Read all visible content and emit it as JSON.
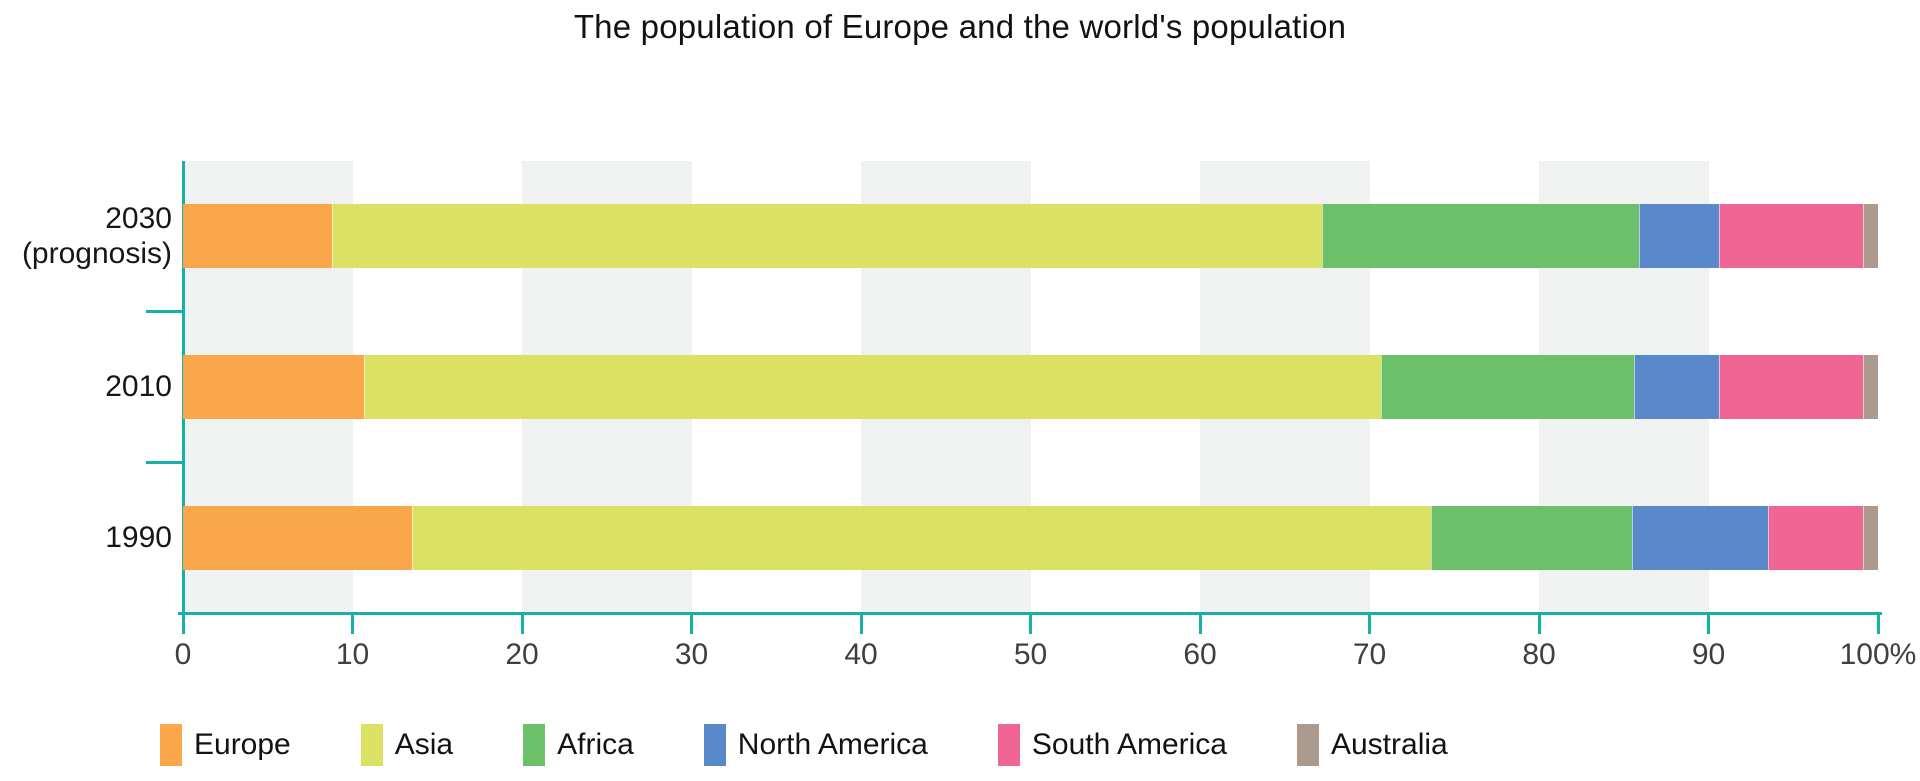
{
  "title": "The population of Europe and the world's population",
  "chart_data": {
    "type": "bar",
    "orientation": "horizontal",
    "stacked": true,
    "unit": "percent of world population",
    "title": "The population of Europe and the world's population",
    "categories": [
      "2030\n(prognosis)",
      "2010",
      "1990"
    ],
    "series": [
      {
        "name": "Europe",
        "color": "#FAA74B",
        "values": [
          8.8,
          10.7,
          13.5
        ]
      },
      {
        "name": "Asia",
        "color": "#DBE263",
        "values": [
          58.4,
          60.0,
          60.1
        ]
      },
      {
        "name": "Africa",
        "color": "#6BC069",
        "values": [
          18.7,
          14.9,
          11.9
        ]
      },
      {
        "name": "North America",
        "color": "#5989CA",
        "values": [
          4.7,
          5.0,
          8.0
        ]
      },
      {
        "name": "South America",
        "color": "#EF6593",
        "values": [
          8.5,
          8.5,
          5.6
        ]
      },
      {
        "name": "Australia",
        "color": "#AC9A8E",
        "values": [
          0.9,
          0.9,
          0.9
        ]
      }
    ],
    "xlim": [
      0,
      100
    ],
    "x_ticks": [
      "0",
      "10",
      "20",
      "30",
      "40",
      "50",
      "60",
      "70",
      "80",
      "90",
      "100%"
    ],
    "grid": "alternating gray/white vertical bands every 10%",
    "legend_position": "bottom"
  },
  "style": {
    "axis_color": "#17AFA6",
    "band_color": "#F0F1F1",
    "tick_label_color": "#3F3F3F",
    "text_color": "#121212"
  }
}
